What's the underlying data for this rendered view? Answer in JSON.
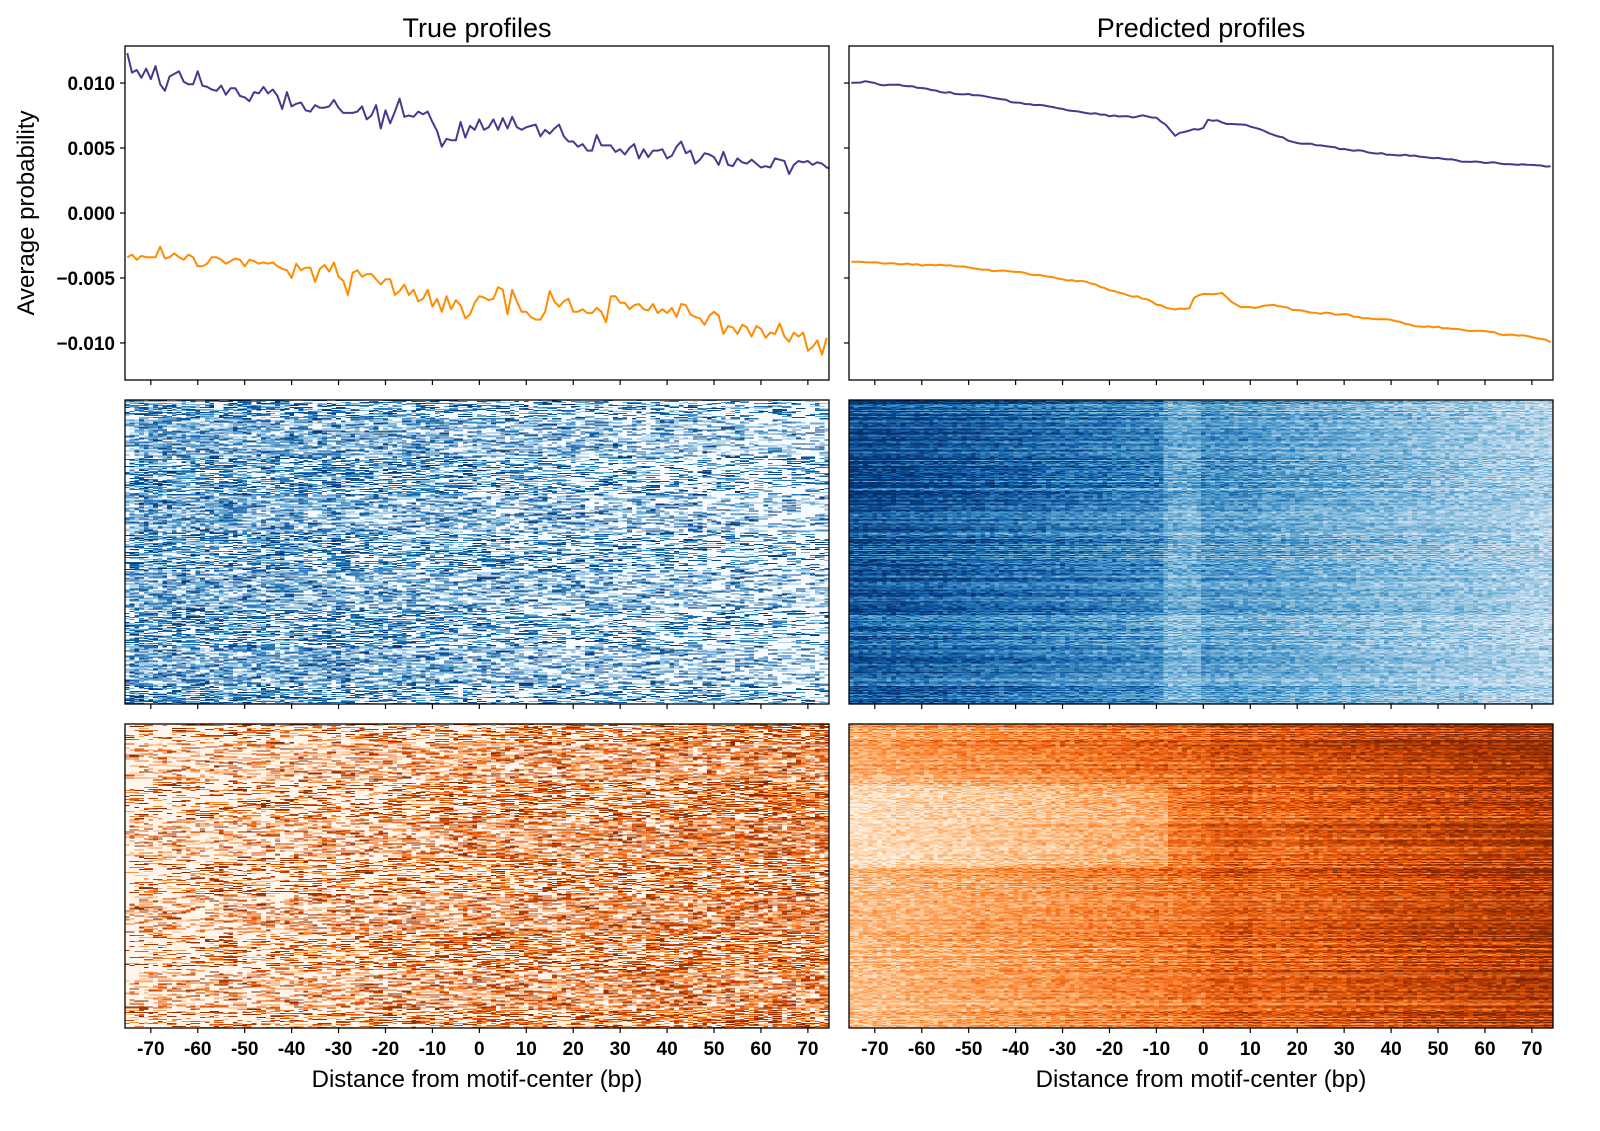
{
  "figure": {
    "colors": {
      "forward_strand": "#443a8f",
      "reverse_strand": "#ff8c00",
      "blues_low": "#f7fbff",
      "blues_high": "#08306b",
      "oranges_low": "#fff5eb",
      "oranges_high": "#7f2704"
    }
  },
  "chart_data": [
    {
      "id": "true-profile-line",
      "type": "line",
      "title": "True profiles",
      "xlabel": "",
      "ylabel": "Average probability",
      "xlim": [
        -75.5,
        74.5
      ],
      "ylim": [
        -0.01285,
        0.01285
      ],
      "yticks": [
        0.01,
        0.005,
        0.0,
        -0.005,
        -0.01
      ],
      "ytick_labels": [
        "0.010",
        "0.005",
        "0.000",
        "−0.005",
        "−0.010"
      ],
      "xticks": [
        -70,
        -60,
        -50,
        -40,
        -30,
        -20,
        -10,
        0,
        10,
        20,
        30,
        40,
        50,
        60,
        70
      ],
      "grid": false,
      "series": [
        {
          "name": "forward",
          "color": "#443a8f",
          "x_start": -75,
          "x_step": 1,
          "values": [
            0.0123,
            0.0108,
            0.011,
            0.0104,
            0.0111,
            0.0103,
            0.0113,
            0.0099,
            0.0094,
            0.0105,
            0.0107,
            0.0109,
            0.0101,
            0.0099,
            0.0099,
            0.0109,
            0.0098,
            0.0097,
            0.0095,
            0.0094,
            0.0098,
            0.0091,
            0.0096,
            0.0096,
            0.009,
            0.0089,
            0.0086,
            0.0093,
            0.0092,
            0.0097,
            0.0092,
            0.0095,
            0.009,
            0.008,
            0.0093,
            0.0082,
            0.0084,
            0.0085,
            0.0079,
            0.0078,
            0.0083,
            0.0081,
            0.0081,
            0.0082,
            0.0087,
            0.0081,
            0.0077,
            0.0077,
            0.0077,
            0.0078,
            0.0082,
            0.0072,
            0.0075,
            0.0083,
            0.0065,
            0.0079,
            0.0069,
            0.0078,
            0.0088,
            0.0074,
            0.0075,
            0.0074,
            0.0078,
            0.0076,
            0.0078,
            0.007,
            0.0063,
            0.0051,
            0.0057,
            0.0056,
            0.0056,
            0.007,
            0.0058,
            0.0067,
            0.0064,
            0.0072,
            0.0064,
            0.0066,
            0.0072,
            0.0064,
            0.0073,
            0.0065,
            0.0074,
            0.0066,
            0.0064,
            0.0066,
            0.0067,
            0.0068,
            0.0059,
            0.0064,
            0.0061,
            0.0065,
            0.0068,
            0.0059,
            0.0055,
            0.0055,
            0.0051,
            0.0053,
            0.0048,
            0.0048,
            0.006,
            0.0052,
            0.0052,
            0.0052,
            0.0047,
            0.0049,
            0.0045,
            0.005,
            0.0053,
            0.0042,
            0.0049,
            0.0043,
            0.0048,
            0.0048,
            0.0049,
            0.0042,
            0.0044,
            0.0051,
            0.0055,
            0.0046,
            0.0048,
            0.0038,
            0.0041,
            0.0046,
            0.0045,
            0.0043,
            0.0037,
            0.0047,
            0.0037,
            0.0036,
            0.0042,
            0.0039,
            0.0038,
            0.0041,
            0.0038,
            0.0035,
            0.0036,
            0.0035,
            0.0042,
            0.0041,
            0.004,
            0.003,
            0.0037,
            0.004,
            0.0039,
            0.004,
            0.0037,
            0.0039,
            0.0038,
            0.0035,
            0.0034,
            0.0041
          ]
        },
        {
          "name": "reverse",
          "color": "#ff8c00",
          "x_start": -75,
          "x_step": 1,
          "values": [
            -0.0034,
            -0.0032,
            -0.0036,
            -0.0033,
            -0.0034,
            -0.0034,
            -0.0034,
            -0.0026,
            -0.0035,
            -0.0034,
            -0.0031,
            -0.0034,
            -0.0036,
            -0.0032,
            -0.0034,
            -0.0041,
            -0.0041,
            -0.0039,
            -0.0034,
            -0.0034,
            -0.0036,
            -0.0039,
            -0.0037,
            -0.0035,
            -0.0036,
            -0.0041,
            -0.0036,
            -0.0037,
            -0.0039,
            -0.0038,
            -0.0039,
            -0.0038,
            -0.0041,
            -0.0043,
            -0.0044,
            -0.005,
            -0.0039,
            -0.0044,
            -0.0042,
            -0.0042,
            -0.0053,
            -0.0043,
            -0.004,
            -0.0045,
            -0.0038,
            -0.0049,
            -0.0052,
            -0.0063,
            -0.0046,
            -0.0044,
            -0.0049,
            -0.0047,
            -0.0047,
            -0.0051,
            -0.0055,
            -0.0051,
            -0.0051,
            -0.0063,
            -0.006,
            -0.0055,
            -0.0063,
            -0.0059,
            -0.0068,
            -0.0066,
            -0.0059,
            -0.0072,
            -0.0066,
            -0.0076,
            -0.0064,
            -0.0074,
            -0.0067,
            -0.0071,
            -0.0081,
            -0.0078,
            -0.0069,
            -0.0064,
            -0.0065,
            -0.0067,
            -0.0066,
            -0.0057,
            -0.0059,
            -0.0078,
            -0.0059,
            -0.0068,
            -0.0076,
            -0.0076,
            -0.008,
            -0.0082,
            -0.0082,
            -0.0076,
            -0.006,
            -0.0068,
            -0.0072,
            -0.0068,
            -0.0066,
            -0.0076,
            -0.0076,
            -0.0074,
            -0.0077,
            -0.0077,
            -0.0073,
            -0.0076,
            -0.0084,
            -0.0064,
            -0.0064,
            -0.0069,
            -0.0069,
            -0.0074,
            -0.0071,
            -0.007,
            -0.0074,
            -0.0075,
            -0.007,
            -0.0077,
            -0.0074,
            -0.0077,
            -0.0073,
            -0.008,
            -0.007,
            -0.0071,
            -0.0078,
            -0.008,
            -0.0081,
            -0.0086,
            -0.0079,
            -0.0076,
            -0.0079,
            -0.0093,
            -0.0087,
            -0.0088,
            -0.0093,
            -0.0086,
            -0.0088,
            -0.0095,
            -0.0087,
            -0.0089,
            -0.0096,
            -0.0092,
            -0.0093,
            -0.0085,
            -0.0095,
            -0.0099,
            -0.0092,
            -0.0095,
            -0.0092,
            -0.0106,
            -0.0103,
            -0.0098,
            -0.0109,
            -0.0096
          ]
        }
      ]
    },
    {
      "id": "predicted-profile-line",
      "type": "line",
      "title": "Predicted profiles",
      "xlabel": "",
      "ylabel": "",
      "xlim": [
        -75.5,
        74.5
      ],
      "ylim": [
        -0.01285,
        0.01285
      ],
      "yticks": [
        0.01,
        0.005,
        0.0,
        -0.005,
        -0.01
      ],
      "ytick_labels": [],
      "xticks": [
        -70,
        -60,
        -50,
        -40,
        -30,
        -20,
        -10,
        0,
        10,
        20,
        30,
        40,
        50,
        60,
        70
      ],
      "grid": false,
      "series": [
        {
          "name": "forward",
          "color": "#443a8f",
          "x_keypoints": [
            -75,
            -72,
            -70,
            -68,
            -65,
            -62,
            -60,
            -55,
            -50,
            -45,
            -40,
            -35,
            -30,
            -25,
            -20,
            -15,
            -12,
            -10,
            -8,
            -6,
            -4,
            -2,
            0,
            1,
            3,
            5,
            8,
            10,
            15,
            20,
            25,
            30,
            35,
            40,
            45,
            50,
            55,
            60,
            65,
            70,
            74
          ],
          "values": [
            0.01,
            0.0101,
            0.01,
            0.0098,
            0.0099,
            0.0097,
            0.0096,
            0.0093,
            0.0091,
            0.0089,
            0.0085,
            0.0083,
            0.008,
            0.0077,
            0.0075,
            0.0074,
            0.0075,
            0.0073,
            0.0068,
            0.006,
            0.0063,
            0.0064,
            0.0065,
            0.0072,
            0.0071,
            0.0069,
            0.0068,
            0.0067,
            0.006,
            0.0054,
            0.0052,
            0.0049,
            0.0047,
            0.0045,
            0.0044,
            0.0042,
            0.004,
            0.0039,
            0.0038,
            0.0037,
            0.0036
          ]
        },
        {
          "name": "reverse",
          "color": "#ff8c00",
          "x_keypoints": [
            -75,
            -70,
            -65,
            -60,
            -55,
            -50,
            -45,
            -40,
            -35,
            -30,
            -25,
            -20,
            -15,
            -12,
            -10,
            -8,
            -5,
            -3,
            -2,
            0,
            2,
            4,
            6,
            8,
            10,
            15,
            20,
            25,
            30,
            35,
            40,
            45,
            50,
            55,
            60,
            65,
            70,
            74
          ],
          "values": [
            -0.0038,
            -0.0038,
            -0.0039,
            -0.004,
            -0.004,
            -0.0042,
            -0.0044,
            -0.0045,
            -0.0048,
            -0.0051,
            -0.0053,
            -0.0059,
            -0.0064,
            -0.0066,
            -0.007,
            -0.0073,
            -0.0074,
            -0.0073,
            -0.0065,
            -0.0062,
            -0.0063,
            -0.0061,
            -0.0068,
            -0.0072,
            -0.0073,
            -0.0071,
            -0.0075,
            -0.0077,
            -0.0078,
            -0.0081,
            -0.0082,
            -0.0087,
            -0.0088,
            -0.009,
            -0.0091,
            -0.0094,
            -0.0095,
            -0.0099
          ]
        }
      ]
    },
    {
      "id": "true-forward-heatmap",
      "type": "heatmap",
      "colormap": "Blues",
      "description": "Per-region true forward-strand signal, sparse; density decreases from left to right",
      "xlim": [
        -75.5,
        74.5
      ],
      "xticks": [
        -70,
        -60,
        -50,
        -40,
        -30,
        -20,
        -10,
        0,
        10,
        20,
        30,
        40,
        50,
        60,
        70
      ],
      "intensity_trend": {
        "left": 0.9,
        "right": 0.35
      },
      "sparse": true
    },
    {
      "id": "predicted-forward-heatmap",
      "type": "heatmap",
      "colormap": "Blues",
      "description": "Per-region predicted forward-strand signal, dense; dark on left fading to light on right, dip near -5..0 bp",
      "xlim": [
        -75.5,
        74.5
      ],
      "xticks": [
        -70,
        -60,
        -50,
        -40,
        -30,
        -20,
        -10,
        0,
        10,
        20,
        30,
        40,
        50,
        60,
        70
      ],
      "intensity_trend": {
        "left": 0.85,
        "right": 0.3
      },
      "sparse": false
    },
    {
      "id": "true-reverse-heatmap",
      "type": "heatmap",
      "colormap": "Oranges",
      "description": "Per-region true reverse-strand signal, sparse; density increases from left to right",
      "xlim": [
        -75.5,
        74.5
      ],
      "xticks": [
        -70,
        -60,
        -50,
        -40,
        -30,
        -20,
        -10,
        0,
        10,
        20,
        30,
        40,
        50,
        60,
        70
      ],
      "xtick_labels": [
        "-70",
        "-60",
        "-50",
        "-40",
        "-30",
        "-20",
        "-10",
        "0",
        "10",
        "20",
        "30",
        "40",
        "50",
        "60",
        "70"
      ],
      "xlabel": "Distance from motif-center (bp)",
      "intensity_trend": {
        "left": 0.3,
        "right": 0.9
      },
      "sparse": true
    },
    {
      "id": "predicted-reverse-heatmap",
      "type": "heatmap",
      "colormap": "Oranges",
      "description": "Per-region predicted reverse-strand signal, dense; light on left darkening to right, bump near +5..+10 bp",
      "xlim": [
        -75.5,
        74.5
      ],
      "xticks": [
        -70,
        -60,
        -50,
        -40,
        -30,
        -20,
        -10,
        0,
        10,
        20,
        30,
        40,
        50,
        60,
        70
      ],
      "xtick_labels": [
        "-70",
        "-60",
        "-50",
        "-40",
        "-30",
        "-20",
        "-10",
        "0",
        "10",
        "20",
        "30",
        "40",
        "50",
        "60",
        "70"
      ],
      "xlabel": "Distance from motif-center (bp)",
      "intensity_trend": {
        "left": 0.3,
        "right": 0.85
      },
      "sparse": false
    }
  ],
  "labels": {
    "title_left": "True profiles",
    "title_right": "Predicted profiles",
    "ylabel": "Average probability",
    "xlabel_left": "Distance from motif-center (bp)",
    "xlabel_right": "Distance from motif-center (bp)",
    "ytick_labels": [
      "0.010",
      "0.005",
      "0.000",
      "−0.005",
      "−0.010"
    ],
    "xtick_labels": [
      "-70",
      "-60",
      "-50",
      "-40",
      "-30",
      "-20",
      "-10",
      "0",
      "10",
      "20",
      "30",
      "40",
      "50",
      "60",
      "70"
    ]
  }
}
